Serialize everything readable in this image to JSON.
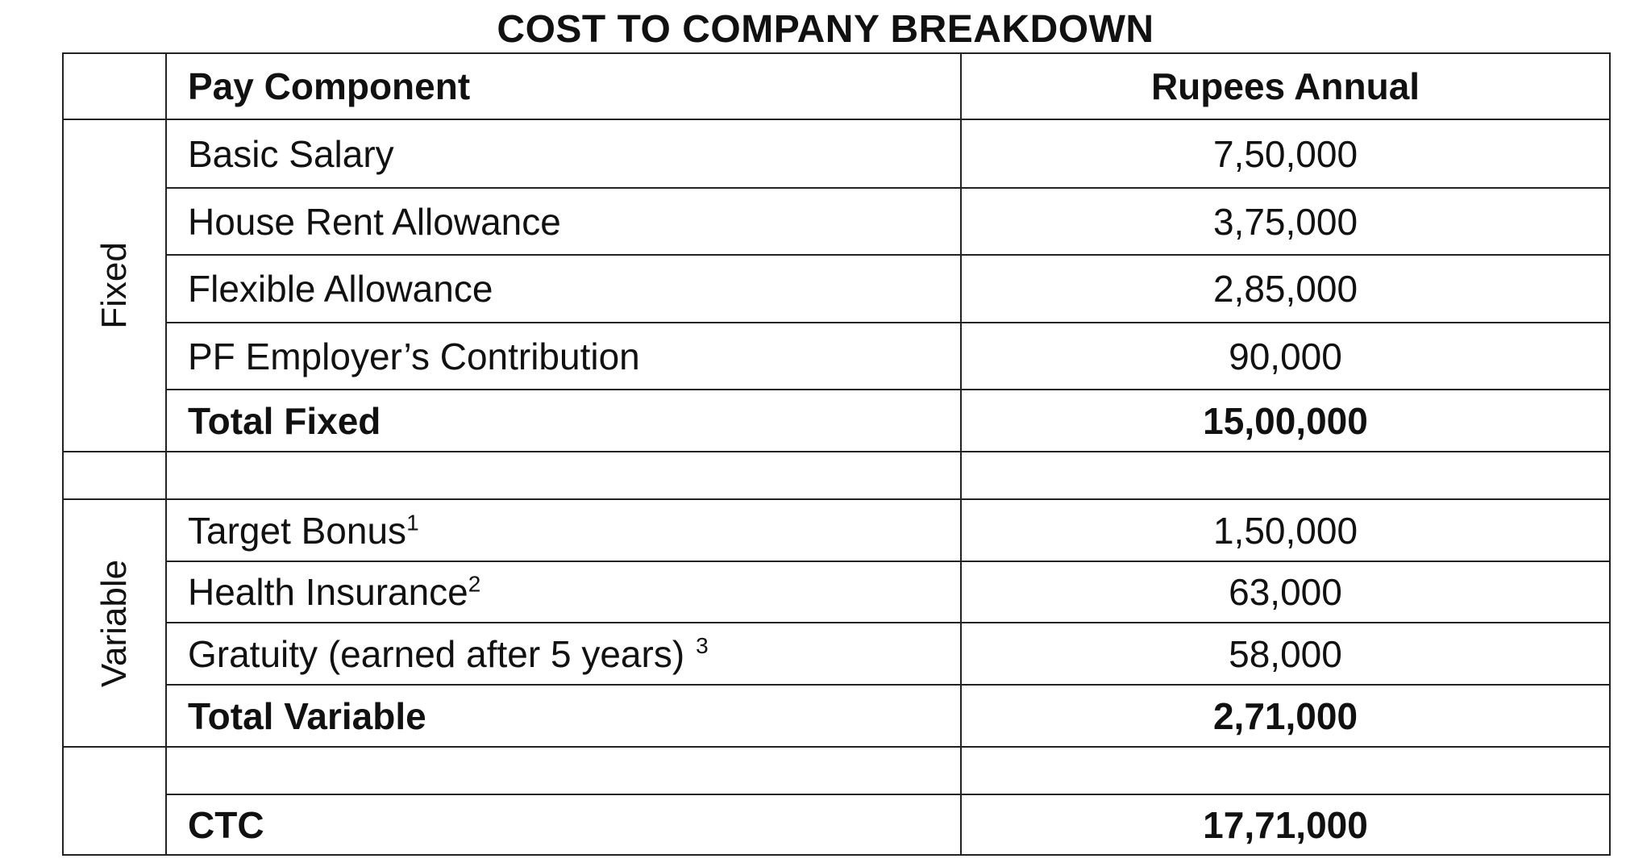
{
  "title": "COST TO COMPANY BREAKDOWN",
  "table": {
    "header": {
      "component": "Pay Component",
      "amount": "Rupees Annual"
    },
    "fixed_group_label": "Fixed",
    "variable_group_label": "Variable",
    "fixed_rows": [
      {
        "component": "Basic Salary",
        "amount": "7,50,000"
      },
      {
        "component": "House Rent Allowance",
        "amount": "3,75,000"
      },
      {
        "component": "Flexible Allowance",
        "amount": "2,85,000"
      },
      {
        "component": "PF Employer’s Contribution",
        "amount": "90,000"
      }
    ],
    "total_fixed": {
      "component": "Total Fixed",
      "amount": "15,00,000"
    },
    "variable_rows": [
      {
        "component": "Target Bonus",
        "note": "1",
        "amount": "1,50,000"
      },
      {
        "component": "Health Insurance",
        "note": "2",
        "amount": "63,000"
      },
      {
        "component": "Gratuity (earned after 5 years)",
        "note": "3",
        "amount": "58,000"
      }
    ],
    "total_variable": {
      "component": "Total Variable",
      "amount": "2,71,000"
    },
    "ctc": {
      "component": "CTC",
      "amount": "17,71,000"
    }
  }
}
